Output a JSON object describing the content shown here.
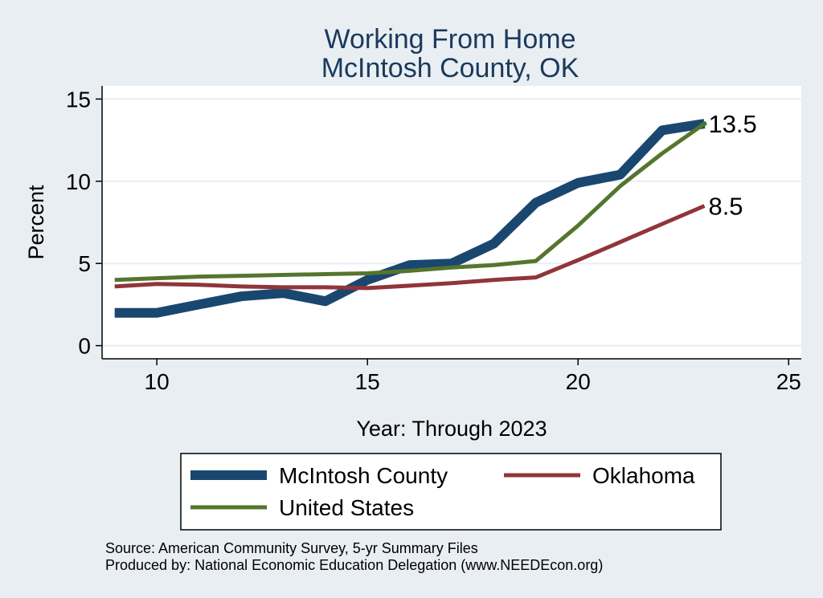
{
  "chart_data": {
    "type": "line",
    "title": "Working From Home",
    "subtitle": "McIntosh County, OK",
    "xlabel": "Year: Through 2023",
    "ylabel": "Percent",
    "xlim": [
      8.7,
      25.3
    ],
    "ylim": [
      -0.8,
      15.8
    ],
    "xticks": [
      10,
      15,
      20,
      25
    ],
    "yticks": [
      0,
      5,
      10,
      15
    ],
    "grid": true,
    "legend_position": "bottom",
    "x": [
      9,
      10,
      11,
      12,
      13,
      14,
      15,
      16,
      17,
      18,
      19,
      20,
      21,
      22,
      23
    ],
    "series": [
      {
        "name": "McIntosh County",
        "color": "#1a476f",
        "values": [
          2.0,
          2.0,
          2.5,
          3.0,
          3.2,
          2.7,
          4.0,
          4.9,
          5.0,
          6.2,
          8.7,
          9.9,
          10.4,
          13.1,
          13.5
        ]
      },
      {
        "name": "Oklahoma",
        "color": "#90353b",
        "values": [
          3.6,
          3.75,
          3.7,
          3.6,
          3.55,
          3.55,
          3.5,
          3.65,
          3.8,
          4.0,
          4.15,
          5.2,
          6.3,
          7.4,
          8.5
        ]
      },
      {
        "name": "United States",
        "color": "#55752f",
        "values": [
          4.0,
          4.1,
          4.2,
          4.25,
          4.3,
          4.35,
          4.4,
          4.55,
          4.75,
          4.9,
          5.15,
          7.3,
          9.7,
          11.7,
          13.5
        ]
      }
    ],
    "end_labels": [
      {
        "text": "13.5",
        "x": 23,
        "y": 13.5
      },
      {
        "text": "8.5",
        "x": 23,
        "y": 8.5
      }
    ]
  },
  "notes": {
    "source": "Source: American Community Survey, 5-yr Summary Files",
    "produced": "Produced by: National Economic Education Delegation (www.NEEDEcon.org)"
  }
}
